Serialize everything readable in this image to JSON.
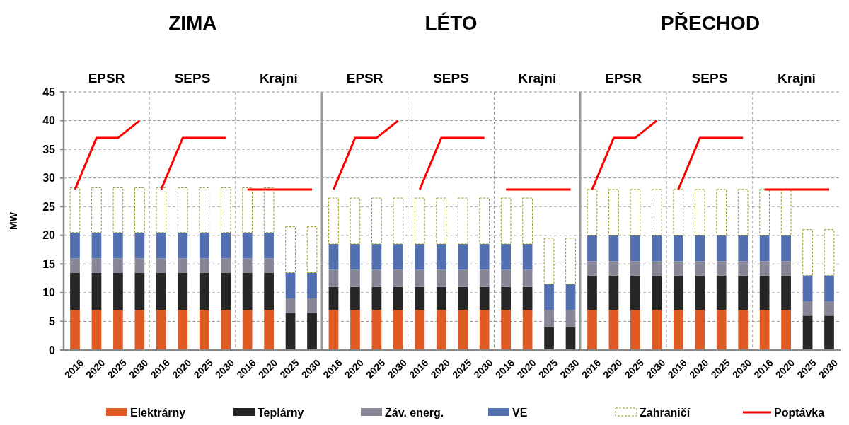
{
  "chart_data": {
    "type": "bar",
    "stacked": true,
    "ylabel": "MW",
    "ylim": [
      0,
      45
    ],
    "yticks": [
      0,
      5,
      10,
      15,
      20,
      25,
      30,
      35,
      40,
      45
    ],
    "grid": "y",
    "legend": "bottom",
    "annotations": [
      "ZIMA",
      "LÉTO",
      "PŘECHOD",
      "EPSR",
      "SEPS",
      "Krajní",
      "EPSR",
      "SEPS",
      "Krajní",
      "EPSR",
      "SEPS",
      "Krajní"
    ],
    "categories": [
      "2016",
      "2020",
      "2025",
      "2030",
      "2016",
      "2020",
      "2025",
      "2030",
      "2016",
      "2020",
      "2025",
      "2030",
      "2016",
      "2020",
      "2025",
      "2030",
      "2016",
      "2020",
      "2025",
      "2030",
      "2016",
      "2020",
      "2025",
      "2030",
      "2016",
      "2020",
      "2025",
      "2030",
      "2016",
      "2020",
      "2025",
      "2030",
      "2016",
      "2020",
      "2025",
      "2030"
    ],
    "series": [
      {
        "name": "Elektrárny",
        "color": "#e05a24",
        "values": [
          7,
          7,
          7,
          7,
          7,
          7,
          7,
          7,
          7,
          7,
          0,
          0,
          7,
          7,
          7,
          7,
          7,
          7,
          7,
          7,
          7,
          7,
          0,
          0,
          7,
          7,
          7,
          7,
          7,
          7,
          7,
          7,
          7,
          7,
          0,
          0
        ]
      },
      {
        "name": "Teplárny",
        "color": "#262626",
        "values": [
          6.5,
          6.5,
          6.5,
          6.5,
          6.5,
          6.5,
          6.5,
          6.5,
          6.5,
          6.5,
          6.5,
          6.5,
          4,
          4,
          4,
          4,
          4,
          4,
          4,
          4,
          4,
          4,
          4,
          4,
          6,
          6,
          6,
          6,
          6,
          6,
          6,
          6,
          6,
          6,
          6,
          6
        ]
      },
      {
        "name": "Záv. energ.",
        "color": "#868696",
        "values": [
          2.5,
          2.5,
          2.5,
          2.5,
          2.5,
          2.5,
          2.5,
          2.5,
          2.5,
          2.5,
          2.5,
          2.5,
          3,
          3,
          3,
          3,
          3,
          3,
          3,
          3,
          3,
          3,
          3,
          3,
          2.5,
          2.5,
          2.5,
          2.5,
          2.5,
          2.5,
          2.5,
          2.5,
          2.5,
          2.5,
          2.5,
          2.5
        ]
      },
      {
        "name": "VE",
        "color": "#526fb0",
        "values": [
          4.5,
          4.5,
          4.5,
          4.5,
          4.5,
          4.5,
          4.5,
          4.5,
          4.5,
          4.5,
          4.5,
          4.5,
          4.5,
          4.5,
          4.5,
          4.5,
          4.5,
          4.5,
          4.5,
          4.5,
          4.5,
          4.5,
          4.5,
          4.5,
          4.5,
          4.5,
          4.5,
          4.5,
          4.5,
          4.5,
          4.5,
          4.5,
          4.5,
          4.5,
          4.5,
          4.5
        ]
      },
      {
        "name": "Zahraničí",
        "color": "#99991e",
        "line_style": "dashed",
        "values": [
          7.8,
          7.8,
          7.8,
          7.8,
          7.8,
          7.8,
          7.8,
          7.8,
          7.8,
          7.8,
          8,
          8,
          8,
          8,
          8,
          8,
          8,
          8,
          8,
          8,
          8,
          8,
          8,
          8,
          8,
          8,
          8,
          8,
          8,
          8,
          8,
          8,
          8,
          8,
          8,
          8
        ]
      },
      {
        "name": "Poptávka",
        "type": "line",
        "color": "#ff0000",
        "values": [
          28,
          37,
          37,
          40,
          null,
          null,
          null,
          null,
          null,
          null,
          null,
          null,
          null,
          null,
          null,
          null,
          null,
          null,
          null,
          null,
          null,
          null,
          null,
          null,
          null,
          null,
          null,
          null,
          null,
          null,
          null,
          null,
          null,
          null,
          null,
          null
        ]
      },
      {
        "type": "line",
        "color": "#ff0000",
        "values": [
          null,
          null,
          null,
          null,
          28,
          37,
          37,
          37,
          null,
          null,
          null,
          null,
          null,
          null,
          null,
          null,
          null,
          null,
          null,
          null,
          null,
          null,
          null,
          null,
          null,
          null,
          null,
          null,
          null,
          null,
          null,
          null,
          null,
          null,
          null,
          null
        ]
      },
      {
        "type": "line",
        "color": "#ff0000",
        "values": [
          null,
          null,
          null,
          null,
          null,
          null,
          null,
          null,
          28,
          28,
          28,
          28,
          null,
          null,
          null,
          null,
          null,
          null,
          null,
          null,
          null,
          null,
          null,
          null,
          null,
          null,
          null,
          null,
          null,
          null,
          null,
          null,
          null,
          null,
          null,
          null
        ]
      },
      {
        "type": "line",
        "color": "#ff0000",
        "values": [
          null,
          null,
          null,
          null,
          null,
          null,
          null,
          null,
          null,
          null,
          null,
          null,
          28,
          37,
          37,
          40,
          null,
          null,
          null,
          null,
          null,
          null,
          null,
          null,
          null,
          null,
          null,
          null,
          null,
          null,
          null,
          null,
          null,
          null,
          null,
          null
        ]
      },
      {
        "type": "line",
        "color": "#ff0000",
        "values": [
          null,
          null,
          null,
          null,
          null,
          null,
          null,
          null,
          null,
          null,
          null,
          null,
          null,
          null,
          null,
          null,
          28,
          37,
          37,
          37,
          null,
          null,
          null,
          null,
          null,
          null,
          null,
          null,
          null,
          null,
          null,
          null,
          null,
          null,
          null,
          null
        ]
      },
      {
        "type": "line",
        "color": "#ff0000",
        "values": [
          null,
          null,
          null,
          null,
          null,
          null,
          null,
          null,
          null,
          null,
          null,
          null,
          null,
          null,
          null,
          null,
          null,
          null,
          null,
          null,
          28,
          28,
          28,
          28,
          null,
          null,
          null,
          null,
          null,
          null,
          null,
          null,
          null,
          null,
          null,
          null
        ]
      },
      {
        "type": "line",
        "color": "#ff0000",
        "values": [
          null,
          null,
          null,
          null,
          null,
          null,
          null,
          null,
          null,
          null,
          null,
          null,
          null,
          null,
          null,
          null,
          null,
          null,
          null,
          null,
          null,
          null,
          null,
          null,
          28,
          37,
          37,
          40,
          null,
          null,
          null,
          null,
          null,
          null,
          null,
          null
        ]
      },
      {
        "type": "line",
        "color": "#ff0000",
        "values": [
          null,
          null,
          null,
          null,
          null,
          null,
          null,
          null,
          null,
          null,
          null,
          null,
          null,
          null,
          null,
          null,
          null,
          null,
          null,
          null,
          null,
          null,
          null,
          null,
          null,
          null,
          null,
          null,
          28,
          37,
          37,
          37,
          null,
          null,
          null,
          null
        ]
      },
      {
        "type": "line",
        "color": "#ff0000",
        "values": [
          null,
          null,
          null,
          null,
          null,
          null,
          null,
          null,
          null,
          null,
          null,
          null,
          null,
          null,
          null,
          null,
          null,
          null,
          null,
          null,
          null,
          null,
          null,
          null,
          null,
          null,
          null,
          null,
          null,
          null,
          null,
          null,
          28,
          28,
          28,
          28
        ]
      }
    ]
  }
}
